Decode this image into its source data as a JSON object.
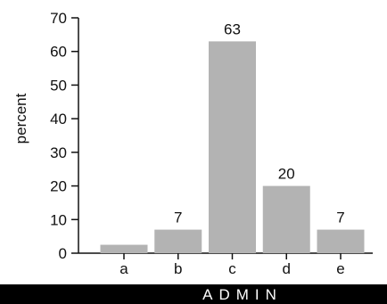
{
  "chart_data": {
    "type": "bar",
    "categories": [
      "a",
      "b",
      "c",
      "d",
      "e"
    ],
    "values": [
      2.5,
      7,
      63,
      20,
      7
    ],
    "data_labels": [
      "",
      "7",
      "63",
      "20",
      "7"
    ],
    "title": "",
    "xlabel": "",
    "ylabel": "percent",
    "ylim": [
      0,
      70
    ],
    "yticks": [
      0,
      10,
      20,
      30,
      40,
      50,
      60,
      70
    ],
    "grid": false,
    "bar_color": "#b3b3b3",
    "footer_label": "ADMIN",
    "footer_color": "#000000"
  }
}
